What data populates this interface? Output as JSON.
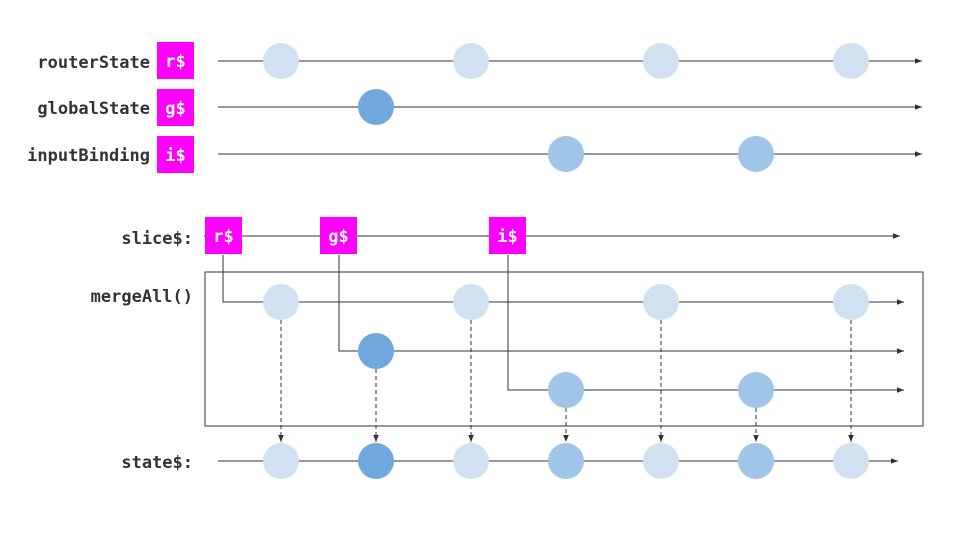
{
  "colors": {
    "badge": "#ff00ff",
    "router_marble": "#d0e2f2",
    "global_marble": "#6fa8dc",
    "input_marble": "#9fc5e8",
    "line": "#333333"
  },
  "sources": [
    {
      "id": "router",
      "label": "routerState",
      "badge": "r$",
      "marble": "router",
      "events": [
        1,
        3,
        5,
        7
      ]
    },
    {
      "id": "global",
      "label": "globalState",
      "badge": "g$",
      "marble": "global",
      "events": [
        2
      ]
    },
    {
      "id": "input",
      "label": "inputBinding",
      "badge": "i$",
      "marble": "input",
      "events": [
        4,
        6
      ]
    }
  ],
  "slice": {
    "label": "slice$:",
    "emissions": [
      "r$",
      "g$",
      "i$"
    ]
  },
  "merge": {
    "label": "mergeAll()"
  },
  "state": {
    "label": "state$:",
    "marbles": [
      "router",
      "global",
      "router",
      "input",
      "router",
      "input",
      "router"
    ]
  }
}
